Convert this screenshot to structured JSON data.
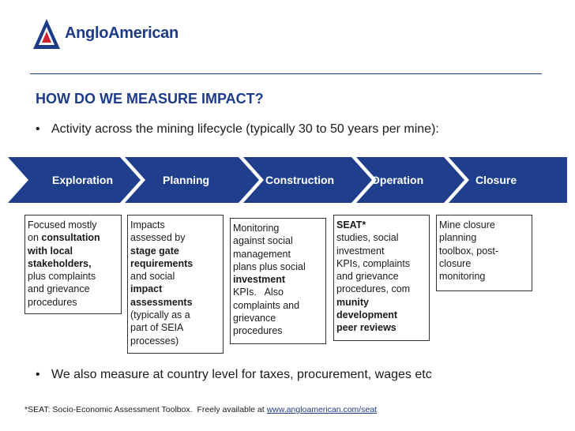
{
  "logo": {
    "brand": "AngloAmerican"
  },
  "title": "HOW DO WE MEASURE IMPACT?",
  "bullets": [
    "Activity across the mining lifecycle (typically 30 to 50 years per mine):",
    "We also measure at country level for taxes, procurement, wages etc"
  ],
  "stages": [
    "Exploration",
    "Planning",
    "Construction",
    "Operation",
    "Closure"
  ],
  "boxes": {
    "exploration": [
      "Focused mostly",
      "on consultation",
      "with local",
      "stakeholders,",
      "plus complaints",
      "and grievance",
      "procedures"
    ],
    "planning": [
      "Impacts",
      "assessed by",
      "stage gate",
      "requirements",
      "and social",
      "impact",
      "assessments",
      "(typically as a",
      "part of SEIA",
      "processes)"
    ],
    "construction": [
      "Monitoring",
      "against social",
      "management",
      "plans plus social",
      "investment",
      "KPIs.   Also",
      "complaints and",
      "grievance",
      "procedures"
    ],
    "operation": [
      "SEAT*",
      "studies, social",
      "investment",
      "KPIs, complaints",
      "and grievance",
      "procedures, com",
      "munity",
      "development",
      "peer reviews"
    ],
    "closure": [
      "Mine closure",
      "planning",
      "toolbox, post-",
      "closure",
      "monitoring"
    ]
  },
  "footnote": {
    "text": "*SEAT: Socio-Economic Assessment Toolbox.  Freely available at ",
    "link": "www.angloamerican.com/seat"
  },
  "colors": {
    "brand_blue": "#1d3b87",
    "chevron": "#1f3f8c",
    "accent_red": "#d1202f"
  }
}
